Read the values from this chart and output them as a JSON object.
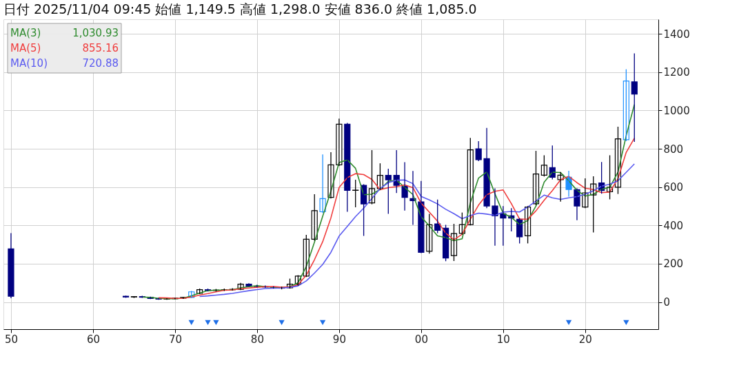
{
  "chart_data": {
    "type": "candlestick",
    "title": "日付 2025/11/04 09:45 始値 1,149.5 高値 1,298.0 安値 836.0 終値 1,085.0",
    "categories": [
      "50",
      null,
      null,
      null,
      null,
      null,
      null,
      null,
      null,
      null,
      "60",
      null,
      null,
      null,
      null,
      null,
      null,
      null,
      null,
      null,
      "70",
      null,
      null,
      null,
      null,
      null,
      null,
      null,
      null,
      null,
      "80",
      null,
      null,
      null,
      null,
      null,
      null,
      null,
      null,
      null,
      "90",
      null,
      null,
      null,
      null,
      null,
      null,
      null,
      null,
      null,
      "00",
      null,
      null,
      null,
      null,
      null,
      null,
      null,
      null,
      null,
      "10",
      null,
      null,
      null,
      null,
      null,
      null,
      null,
      null,
      null,
      "20",
      null,
      null,
      null,
      null,
      null,
      null,
      null,
      null
    ],
    "ohlc": [
      [
        277,
        360,
        20,
        30
      ],
      null,
      null,
      null,
      null,
      null,
      null,
      null,
      null,
      null,
      null,
      null,
      null,
      null,
      [
        30,
        33,
        22,
        26
      ],
      [
        26,
        30,
        21,
        28
      ],
      [
        28,
        32,
        22,
        25
      ],
      [
        25,
        28,
        15,
        18
      ],
      [
        18,
        22,
        12,
        15
      ],
      [
        15,
        20,
        12,
        17
      ],
      [
        17,
        22,
        14,
        20
      ],
      [
        20,
        26,
        16,
        24
      ],
      [
        24,
        58,
        22,
        53
      ],
      [
        45,
        70,
        42,
        64
      ],
      [
        64,
        70,
        55,
        60
      ],
      [
        60,
        68,
        55,
        62
      ],
      [
        62,
        70,
        58,
        64
      ],
      [
        64,
        72,
        60,
        66
      ],
      [
        66,
        100,
        62,
        93
      ],
      [
        93,
        98,
        80,
        82
      ],
      [
        82,
        90,
        76,
        80
      ],
      [
        80,
        86,
        74,
        78
      ],
      [
        78,
        82,
        70,
        72
      ],
      [
        72,
        80,
        66,
        74
      ],
      [
        74,
        122,
        70,
        93
      ],
      [
        93,
        140,
        85,
        135
      ],
      [
        135,
        351,
        130,
        328
      ],
      [
        328,
        563,
        320,
        477
      ],
      [
        471,
        770,
        465,
        540
      ],
      [
        546,
        782,
        540,
        716
      ],
      [
        716,
        957,
        710,
        928
      ],
      [
        928,
        935,
        471,
        583
      ],
      [
        583,
        638,
        494,
        584
      ],
      [
        609,
        615,
        345,
        512
      ],
      [
        517,
        793,
        510,
        592
      ],
      [
        592,
        724,
        585,
        661
      ],
      [
        661,
        696,
        460,
        638
      ],
      [
        661,
        793,
        569,
        609
      ],
      [
        604,
        730,
        477,
        546
      ],
      [
        540,
        684,
        403,
        529
      ],
      [
        523,
        632,
        255,
        259
      ],
      [
        265,
        460,
        253,
        403
      ],
      [
        408,
        535,
        360,
        374
      ],
      [
        385,
        403,
        213,
        230
      ],
      [
        242,
        408,
        214,
        357
      ],
      [
        358,
        467,
        352,
        404
      ],
      [
        404,
        857,
        400,
        794
      ],
      [
        800,
        840,
        735,
        743
      ],
      [
        748,
        909,
        490,
        501
      ],
      [
        501,
        593,
        294,
        450
      ],
      [
        461,
        501,
        294,
        438
      ],
      [
        450,
        490,
        369,
        438
      ],
      [
        432,
        438,
        306,
        340
      ],
      [
        346,
        501,
        306,
        496
      ],
      [
        513,
        789,
        505,
        668
      ],
      [
        662,
        766,
        655,
        714
      ],
      [
        702,
        817,
        640,
        651
      ],
      [
        639,
        679,
        524,
        662
      ],
      [
        651,
        685,
        550,
        587
      ],
      [
        587,
        593,
        427,
        501
      ],
      [
        496,
        645,
        490,
        570
      ],
      [
        559,
        656,
        363,
        616
      ],
      [
        622,
        731,
        565,
        582
      ],
      [
        576,
        766,
        536,
        599
      ],
      [
        599,
        915,
        564,
        852
      ],
      [
        847,
        1215,
        840,
        1154
      ],
      [
        1149.5,
        1298,
        836,
        1085
      ],
      null,
      null
    ],
    "colors": [
      "#000080",
      null,
      null,
      null,
      null,
      null,
      null,
      null,
      null,
      null,
      null,
      null,
      null,
      null,
      "#000080",
      "#000000",
      "#000080",
      "#000080",
      "#000080",
      "#000000",
      "#000000",
      "#000000",
      "#1e90ff",
      "#000000",
      "#000080",
      "#000000",
      "#000000",
      "#000000",
      "#000000",
      "#000080",
      "#000080",
      "#000080",
      "#000080",
      "#000000",
      "#000000",
      "#000000",
      "#000000",
      "#000000",
      "#1e90ff",
      "#000000",
      "#000000",
      "#000080",
      "#000000",
      "#000080",
      "#000000",
      "#000000",
      "#000080",
      "#000080",
      "#000080",
      "#000080",
      "#000080",
      "#000000",
      "#000080",
      "#000080",
      "#000000",
      "#000000",
      "#000000",
      "#000080",
      "#000080",
      "#000080",
      "#000080",
      "#000080",
      "#000080",
      "#000000",
      "#000000",
      "#000000",
      "#000080",
      "#000000",
      "#1e90ff",
      "#000080",
      "#000000",
      "#000000",
      "#000080",
      "#000000",
      "#000000",
      "#1e90ff",
      "#000080",
      null,
      null
    ],
    "ylim": [
      -142,
      1476
    ],
    "yticks": [
      0,
      200,
      400,
      600,
      800,
      1000,
      1200,
      1400
    ],
    "grid": true,
    "legend": "top left",
    "annotations": [
      "1,030.93",
      "855.16",
      "720.88"
    ],
    "series": [
      {
        "type": "line",
        "name": "MA(3)",
        "color": "#2e8b2e",
        "values": [
          null,
          null,
          null,
          null,
          null,
          null,
          null,
          null,
          null,
          null,
          null,
          null,
          null,
          null,
          null,
          null,
          26,
          24,
          19,
          17,
          17,
          20,
          32,
          47,
          59,
          62,
          62,
          64,
          74,
          80,
          85,
          80,
          77,
          75,
          80,
          101,
          185,
          313,
          448,
          578,
          728,
          742,
          698,
          560,
          563,
          588,
          630,
          636,
          598,
          561,
          445,
          397,
          345,
          336,
          320,
          330,
          518,
          647,
          679,
          565,
          463,
          442,
          405,
          425,
          501,
          626,
          678,
          676,
          633,
          583,
          553,
          562,
          589,
          599,
          678,
          868,
          1031,
          null,
          null
        ]
      },
      {
        "type": "line",
        "name": "MA(5)",
        "color": "#f03c3c",
        "values": [
          null,
          null,
          null,
          null,
          null,
          null,
          null,
          null,
          null,
          null,
          null,
          null,
          null,
          null,
          null,
          null,
          null,
          null,
          22,
          21,
          19,
          19,
          26,
          36,
          44,
          53,
          61,
          63,
          69,
          73,
          77,
          80,
          81,
          77,
          79,
          90,
          140,
          221,
          315,
          439,
          598,
          649,
          670,
          665,
          640,
          586,
          597,
          602,
          611,
          597,
          516,
          469,
          422,
          359,
          325,
          354,
          432,
          506,
          560,
          578,
          585,
          514,
          433,
          432,
          476,
          531,
          582,
          638,
          656,
          623,
          594,
          587,
          571,
          574,
          644,
          781,
          855,
          null,
          null
        ]
      },
      {
        "type": "line",
        "name": "MA(10)",
        "color": "#5a5af0",
        "values": [
          null,
          null,
          null,
          null,
          null,
          null,
          null,
          null,
          null,
          null,
          null,
          null,
          null,
          null,
          null,
          null,
          null,
          null,
          null,
          null,
          null,
          null,
          null,
          29,
          32,
          36,
          40,
          45,
          52,
          59,
          65,
          70,
          72,
          73,
          76,
          84,
          110,
          151,
          196,
          259,
          344,
          395,
          446,
          490,
          540,
          592,
          623,
          636,
          637,
          618,
          551,
          533,
          512,
          484,
          461,
          435,
          451,
          464,
          459,
          452,
          469,
          473,
          470,
          496,
          527,
          558,
          544,
          536,
          544,
          550,
          563,
          581,
          605,
          615,
          633,
          677,
          721,
          null,
          null
        ]
      },
      {
        "type": "scatter",
        "marker": "triangle",
        "color": "#1e6fe8",
        "values": [
          null,
          null,
          null,
          null,
          null,
          null,
          null,
          null,
          null,
          null,
          null,
          null,
          null,
          null,
          null,
          null,
          null,
          null,
          null,
          null,
          null,
          null,
          -107,
          null,
          -107,
          -107,
          null,
          null,
          null,
          null,
          null,
          null,
          null,
          -107,
          null,
          null,
          null,
          null,
          -107,
          null,
          null,
          null,
          null,
          null,
          null,
          null,
          null,
          null,
          null,
          null,
          null,
          null,
          null,
          null,
          null,
          null,
          null,
          null,
          null,
          null,
          null,
          null,
          null,
          null,
          null,
          null,
          null,
          null,
          -107,
          null,
          null,
          null,
          null,
          null,
          null,
          -107,
          null,
          null,
          null
        ]
      }
    ]
  }
}
